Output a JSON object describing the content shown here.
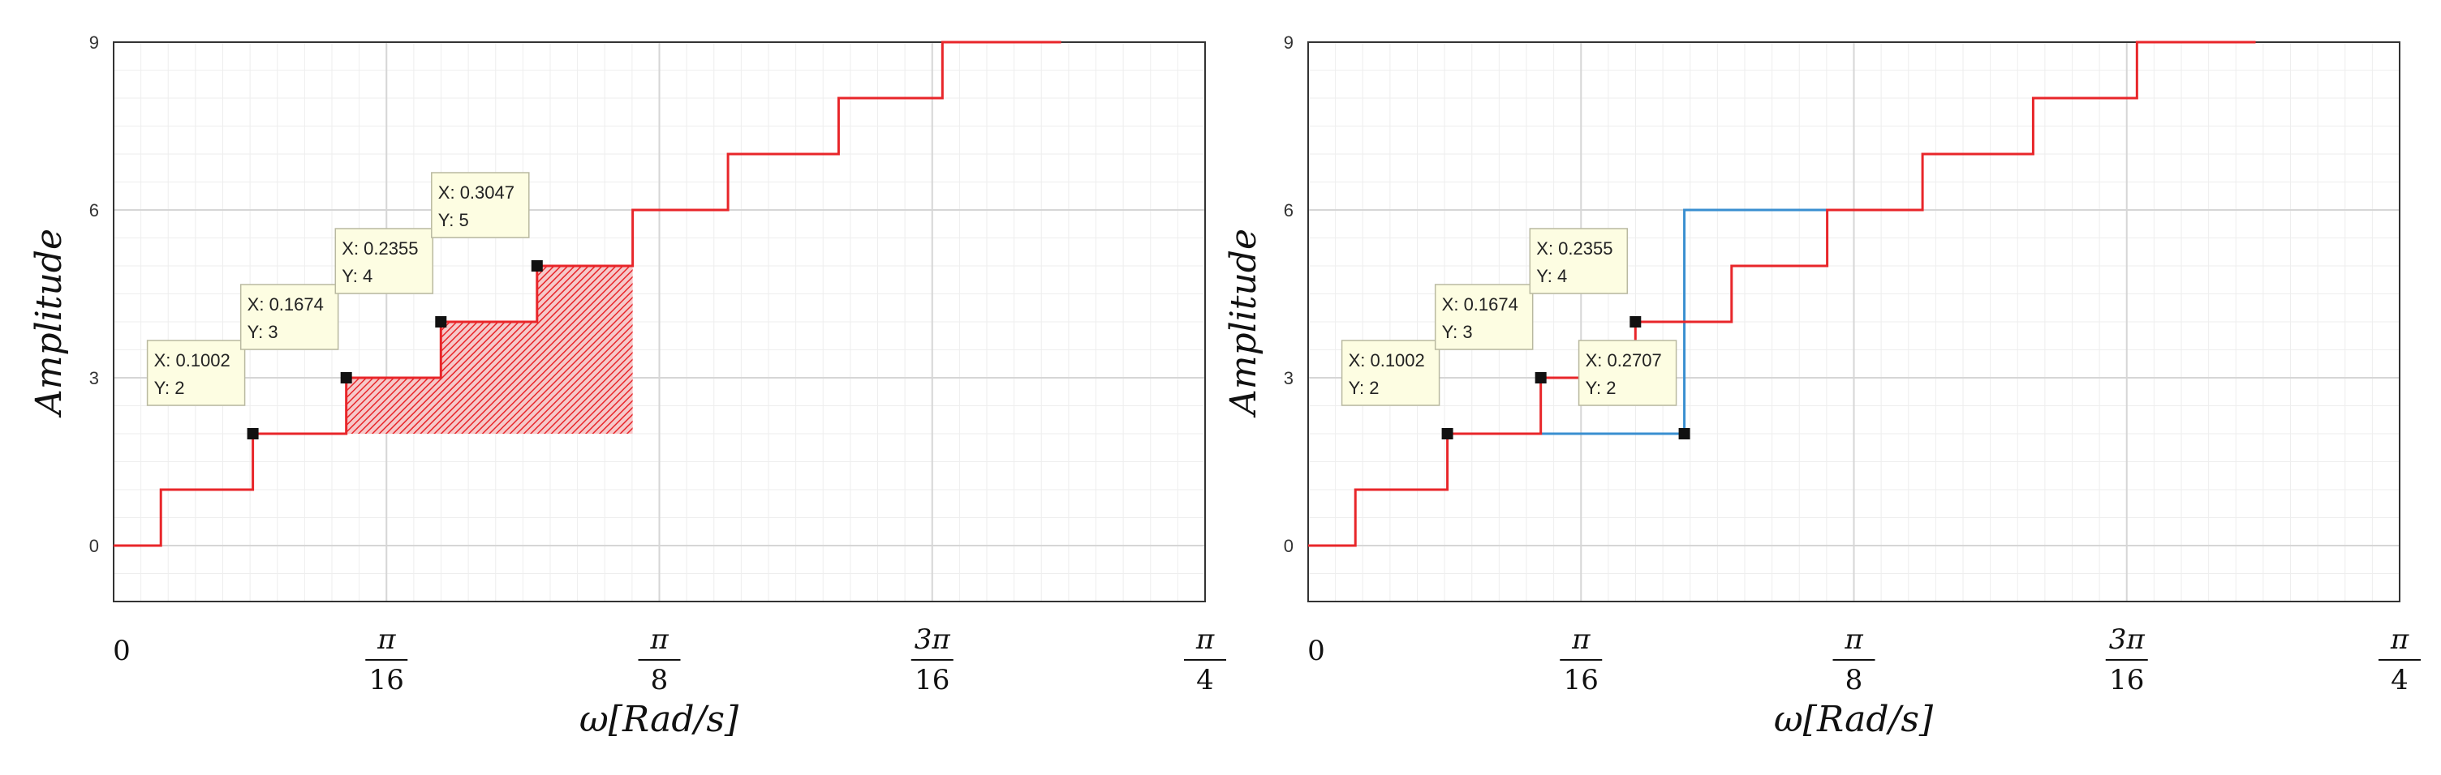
{
  "chart_data": [
    {
      "type": "line",
      "subtype": "stairs",
      "ylabel": "Amplitude",
      "xlabel": "ω[Rad/s]",
      "xlim": [
        0,
        0.7854
      ],
      "ylim": [
        -1,
        9
      ],
      "yticks": [
        {
          "v": 0,
          "label": "0"
        },
        {
          "v": 3,
          "label": "3"
        },
        {
          "v": 6,
          "label": "6"
        },
        {
          "v": 9,
          "label": "9"
        }
      ],
      "xticks": [
        {
          "v": 0,
          "num": "0",
          "den": ""
        },
        {
          "v": 0.19635,
          "num": "π",
          "den": "16"
        },
        {
          "v": 0.3927,
          "num": "π",
          "den": "8"
        },
        {
          "v": 0.58905,
          "num": "3π",
          "den": "16"
        },
        {
          "v": 0.7854,
          "num": "π",
          "den": "4"
        }
      ],
      "series": [
        {
          "name": "red",
          "color": "#e8262a",
          "points": [
            [
              0,
              0
            ],
            [
              0.034,
              0
            ],
            [
              0.034,
              1
            ],
            [
              0.1002,
              1
            ],
            [
              0.1002,
              2
            ],
            [
              0.1674,
              2
            ],
            [
              0.1674,
              3
            ],
            [
              0.2355,
              3
            ],
            [
              0.2355,
              4
            ],
            [
              0.3047,
              4
            ],
            [
              0.3047,
              5
            ],
            [
              0.3735,
              5
            ],
            [
              0.3735,
              6
            ],
            [
              0.4421,
              6
            ],
            [
              0.4421,
              7
            ],
            [
              0.5217,
              7
            ],
            [
              0.5217,
              8
            ],
            [
              0.5964,
              8
            ],
            [
              0.5964,
              9
            ],
            [
              0.6818,
              9
            ]
          ]
        }
      ],
      "shaded_region": {
        "color": "#e8262a",
        "points": [
          [
            0.1674,
            2
          ],
          [
            0.1674,
            3
          ],
          [
            0.2355,
            3
          ],
          [
            0.2355,
            4
          ],
          [
            0.3047,
            4
          ],
          [
            0.3047,
            5
          ],
          [
            0.3735,
            5
          ],
          [
            0.3735,
            2
          ]
        ]
      },
      "datatips": [
        {
          "x": 0.1002,
          "y": 2,
          "line1": "X: 0.1002",
          "line2": "Y: 2"
        },
        {
          "x": 0.1674,
          "y": 3,
          "line1": "X: 0.1674",
          "line2": "Y: 3"
        },
        {
          "x": 0.2355,
          "y": 4,
          "line1": "X: 0.2355",
          "line2": "Y: 4"
        },
        {
          "x": 0.3047,
          "y": 5,
          "line1": "X: 0.3047",
          "line2": "Y: 5"
        }
      ]
    },
    {
      "type": "line",
      "subtype": "stairs",
      "ylabel": "Amplitude",
      "xlabel": "ω[Rad/s]",
      "xlim": [
        0,
        0.7854
      ],
      "ylim": [
        -1,
        9
      ],
      "yticks": [
        {
          "v": 0,
          "label": "0"
        },
        {
          "v": 3,
          "label": "3"
        },
        {
          "v": 6,
          "label": "6"
        },
        {
          "v": 9,
          "label": "9"
        }
      ],
      "xticks": [
        {
          "v": 0,
          "num": "0",
          "den": ""
        },
        {
          "v": 0.19635,
          "num": "π",
          "den": "16"
        },
        {
          "v": 0.3927,
          "num": "π",
          "den": "8"
        },
        {
          "v": 0.58905,
          "num": "3π",
          "den": "16"
        },
        {
          "v": 0.7854,
          "num": "π",
          "den": "4"
        }
      ],
      "series": [
        {
          "name": "blue",
          "color": "#3a8fd0",
          "points": [
            [
              0.1674,
              2
            ],
            [
              0.2707,
              2
            ],
            [
              0.2707,
              6
            ],
            [
              0.3735,
              6
            ]
          ]
        },
        {
          "name": "red",
          "color": "#e8262a",
          "points": [
            [
              0,
              0
            ],
            [
              0.034,
              0
            ],
            [
              0.034,
              1
            ],
            [
              0.1002,
              1
            ],
            [
              0.1002,
              2
            ],
            [
              0.1674,
              2
            ],
            [
              0.1674,
              3
            ],
            [
              0.2355,
              3
            ],
            [
              0.2355,
              4
            ],
            [
              0.3047,
              4
            ],
            [
              0.3047,
              5
            ],
            [
              0.3735,
              5
            ],
            [
              0.3735,
              6
            ],
            [
              0.4421,
              6
            ],
            [
              0.4421,
              7
            ],
            [
              0.5217,
              7
            ],
            [
              0.5217,
              8
            ],
            [
              0.5964,
              8
            ],
            [
              0.5964,
              9
            ],
            [
              0.6818,
              9
            ]
          ]
        }
      ],
      "datatips": [
        {
          "x": 0.1002,
          "y": 2,
          "line1": "X: 0.1002",
          "line2": "Y: 2"
        },
        {
          "x": 0.1674,
          "y": 3,
          "line1": "X: 0.1674",
          "line2": "Y: 3"
        },
        {
          "x": 0.2355,
          "y": 4,
          "line1": "X: 0.2355",
          "line2": "Y: 4"
        },
        {
          "x": 0.2707,
          "y": 2,
          "line1": "X: 0.2707",
          "line2": "Y: 2"
        }
      ]
    }
  ]
}
